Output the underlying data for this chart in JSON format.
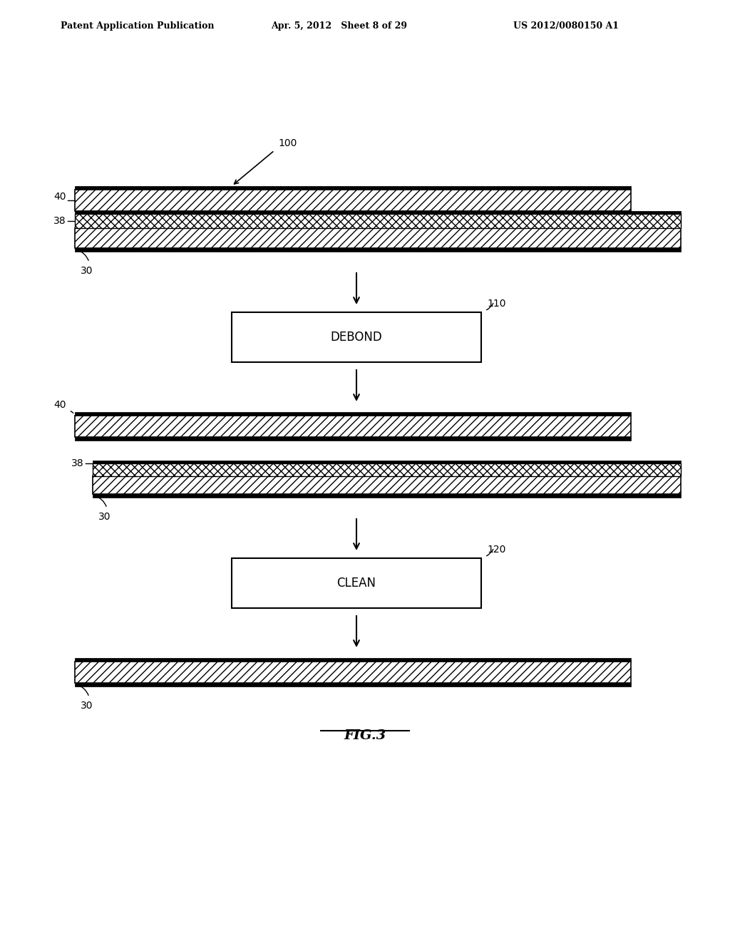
{
  "bg_color": "#ffffff",
  "header_text1": "Patent Application Publication",
  "header_text2": "Apr. 5, 2012   Sheet 8 of 29",
  "header_text3": "US 2012/0080150 A1",
  "fig_label": "FIG.3",
  "label_100": "100",
  "label_40": "40",
  "label_38": "38",
  "label_30": "30",
  "label_110": "110",
  "box1_text": "DEBOND",
  "label_120": "120",
  "box2_text": "CLEAN"
}
